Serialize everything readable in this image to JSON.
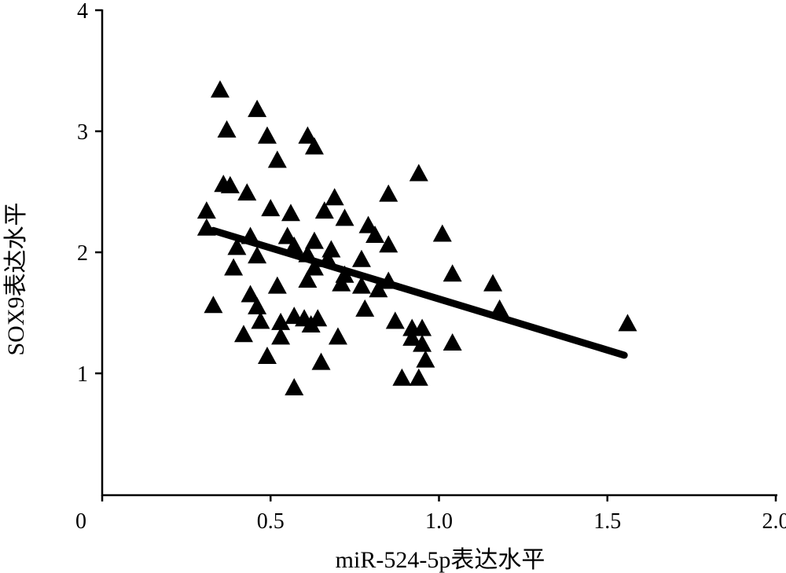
{
  "chart_data": {
    "type": "scatter",
    "title": "",
    "xlabel": "miR-524-5p表达水平",
    "ylabel": "SOX9表达水平",
    "xlim": [
      0,
      2.0
    ],
    "ylim": [
      0,
      4
    ],
    "xticks": [
      "0",
      "0.5",
      "1.0",
      "1.5",
      "2.0"
    ],
    "xtick_values": [
      0,
      0.5,
      1.0,
      1.5,
      2.0
    ],
    "yticks": [
      "1",
      "2",
      "3",
      "4"
    ],
    "ytick_values": [
      1,
      2,
      3,
      4
    ],
    "grid": false,
    "marker": "triangle",
    "color": "#000000",
    "points": [
      [
        0.35,
        3.33
      ],
      [
        0.46,
        3.17
      ],
      [
        0.37,
        3.0
      ],
      [
        0.49,
        2.95
      ],
      [
        0.61,
        2.95
      ],
      [
        0.63,
        2.86
      ],
      [
        0.52,
        2.75
      ],
      [
        0.36,
        2.55
      ],
      [
        0.38,
        2.54
      ],
      [
        0.43,
        2.48
      ],
      [
        0.94,
        2.64
      ],
      [
        0.85,
        2.47
      ],
      [
        0.31,
        2.33
      ],
      [
        0.5,
        2.35
      ],
      [
        0.56,
        2.31
      ],
      [
        0.69,
        2.44
      ],
      [
        0.66,
        2.33
      ],
      [
        0.72,
        2.27
      ],
      [
        0.79,
        2.21
      ],
      [
        0.81,
        2.13
      ],
      [
        0.85,
        2.05
      ],
      [
        1.01,
        2.14
      ],
      [
        0.31,
        2.19
      ],
      [
        0.44,
        2.12
      ],
      [
        0.4,
        2.03
      ],
      [
        0.46,
        1.96
      ],
      [
        0.55,
        2.12
      ],
      [
        0.57,
        2.04
      ],
      [
        0.63,
        2.08
      ],
      [
        0.61,
        1.97
      ],
      [
        0.68,
        2.01
      ],
      [
        0.67,
        1.93
      ],
      [
        0.63,
        1.86
      ],
      [
        0.77,
        1.93
      ],
      [
        0.39,
        1.86
      ],
      [
        0.72,
        1.8
      ],
      [
        0.71,
        1.73
      ],
      [
        0.77,
        1.71
      ],
      [
        0.82,
        1.68
      ],
      [
        0.85,
        1.75
      ],
      [
        1.04,
        1.81
      ],
      [
        1.16,
        1.73
      ],
      [
        1.18,
        1.52
      ],
      [
        1.56,
        1.4
      ],
      [
        0.61,
        1.76
      ],
      [
        0.52,
        1.71
      ],
      [
        0.33,
        1.55
      ],
      [
        0.44,
        1.64
      ],
      [
        0.46,
        1.54
      ],
      [
        0.47,
        1.42
      ],
      [
        0.53,
        1.41
      ],
      [
        0.53,
        1.29
      ],
      [
        0.57,
        1.46
      ],
      [
        0.6,
        1.44
      ],
      [
        0.62,
        1.39
      ],
      [
        0.64,
        1.44
      ],
      [
        0.42,
        1.31
      ],
      [
        0.49,
        1.13
      ],
      [
        0.7,
        1.29
      ],
      [
        0.78,
        1.52
      ],
      [
        0.87,
        1.42
      ],
      [
        0.65,
        1.08
      ],
      [
        0.57,
        0.87
      ],
      [
        0.92,
        1.36
      ],
      [
        0.95,
        1.36
      ],
      [
        0.92,
        1.28
      ],
      [
        0.95,
        1.23
      ],
      [
        0.96,
        1.1
      ],
      [
        0.89,
        0.95
      ],
      [
        0.94,
        0.95
      ],
      [
        1.04,
        1.24
      ]
    ],
    "fit_line": {
      "x": [
        0.33,
        1.55
      ],
      "y": [
        2.18,
        1.15
      ]
    }
  }
}
